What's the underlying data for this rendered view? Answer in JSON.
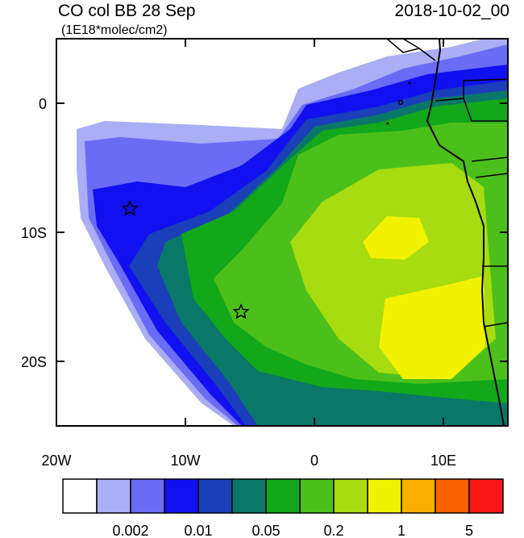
{
  "header": {
    "title": "CO col BB 28 Sep",
    "date": "2018-10-02_00",
    "units": "(1E18*molec/cm2)"
  },
  "map": {
    "lon_range": [
      -20,
      15
    ],
    "lat_range": [
      -25,
      5
    ],
    "lon_ticks": [
      {
        "value": -20,
        "label": "20W"
      },
      {
        "value": -10,
        "label": "10W"
      },
      {
        "value": 0,
        "label": "0"
      },
      {
        "value": 10,
        "label": "10E"
      }
    ],
    "lat_ticks": [
      {
        "value": 0,
        "label": "0"
      },
      {
        "value": -10,
        "label": "10S"
      },
      {
        "value": -20,
        "label": "20S"
      }
    ]
  },
  "colorbar": {
    "colors": [
      "#ffffff",
      "#a9aef5",
      "#6a6cf6",
      "#1010f0",
      "#1a3fb8",
      "#0a7868",
      "#12a81a",
      "#4cc01a",
      "#a6dc10",
      "#f2f200",
      "#f8b000",
      "#f86000",
      "#f81818"
    ],
    "labels": [
      "0.002",
      "0.01",
      "0.05",
      "0.2",
      "1",
      "5"
    ]
  }
}
